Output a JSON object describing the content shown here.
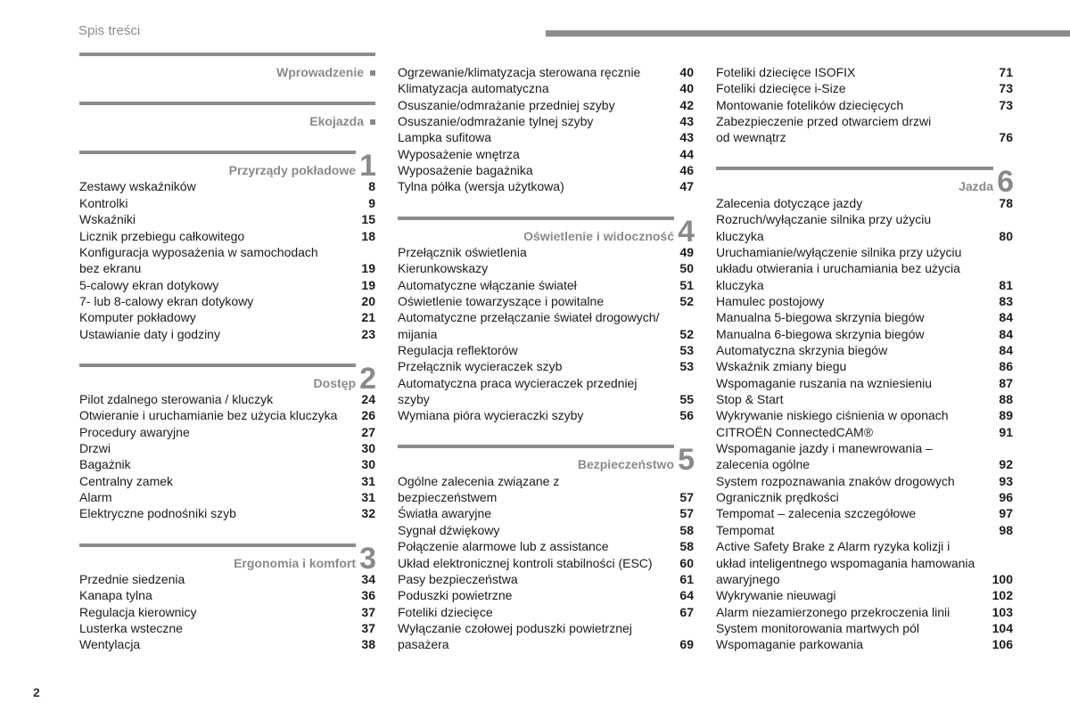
{
  "header": {
    "title": "Spis treści",
    "page_number": "2"
  },
  "columns": [
    {
      "items": [
        {
          "type": "header",
          "title": "Wprowadzenie",
          "marker": "■"
        },
        {
          "type": "header",
          "title": "Ekojazda",
          "marker": "■"
        },
        {
          "type": "header",
          "title": "Przyrządy pokładowe",
          "num": "1"
        },
        {
          "type": "entry",
          "lines": [
            "Zestawy wskaźników"
          ],
          "page": "8"
        },
        {
          "type": "entry",
          "lines": [
            "Kontrolki"
          ],
          "page": "9"
        },
        {
          "type": "entry",
          "lines": [
            "Wskaźniki"
          ],
          "page": "15"
        },
        {
          "type": "entry",
          "lines": [
            "Licznik przebiegu całkowitego"
          ],
          "page": "18"
        },
        {
          "type": "entry",
          "lines": [
            "Konfiguracja wyposażenia w samochodach",
            "bez ekranu"
          ],
          "page": "19"
        },
        {
          "type": "entry",
          "lines": [
            "5-calowy ekran dotykowy"
          ],
          "page": "19"
        },
        {
          "type": "entry",
          "lines": [
            "7- lub 8-calowy ekran dotykowy"
          ],
          "page": "20"
        },
        {
          "type": "entry",
          "lines": [
            "Komputer pokładowy"
          ],
          "page": "21"
        },
        {
          "type": "entry",
          "lines": [
            "Ustawianie daty i godziny"
          ],
          "page": "23"
        },
        {
          "type": "header",
          "title": "Dostęp",
          "num": "2"
        },
        {
          "type": "entry",
          "lines": [
            "Pilot zdalnego sterowania / kluczyk"
          ],
          "page": "24"
        },
        {
          "type": "entry",
          "lines": [
            "Otwieranie i uruchamianie bez użycia kluczyka"
          ],
          "page": "26"
        },
        {
          "type": "entry",
          "lines": [
            "Procedury awaryjne"
          ],
          "page": "27"
        },
        {
          "type": "entry",
          "lines": [
            "Drzwi"
          ],
          "page": "30"
        },
        {
          "type": "entry",
          "lines": [
            "Bagażnik"
          ],
          "page": "30"
        },
        {
          "type": "entry",
          "lines": [
            "Centralny zamek"
          ],
          "page": "31"
        },
        {
          "type": "entry",
          "lines": [
            "Alarm"
          ],
          "page": "31"
        },
        {
          "type": "entry",
          "lines": [
            "Elektryczne podnośniki szyb"
          ],
          "page": "32"
        },
        {
          "type": "header",
          "title": "Ergonomia i komfort",
          "num": "3"
        },
        {
          "type": "entry",
          "lines": [
            "Przednie siedzenia"
          ],
          "page": "34"
        },
        {
          "type": "entry",
          "lines": [
            "Kanapa tylna"
          ],
          "page": "36"
        },
        {
          "type": "entry",
          "lines": [
            "Regulacja kierownicy"
          ],
          "page": "37"
        },
        {
          "type": "entry",
          "lines": [
            "Lusterka wsteczne"
          ],
          "page": "37"
        },
        {
          "type": "entry",
          "lines": [
            "Wentylacja"
          ],
          "page": "38"
        }
      ]
    },
    {
      "items": [
        {
          "type": "entry",
          "lines": [
            "Ogrzewanie/klimatyzacja sterowana ręcznie"
          ],
          "page": "40"
        },
        {
          "type": "entry",
          "lines": [
            "Klimatyzacja automatyczna"
          ],
          "page": "40"
        },
        {
          "type": "entry",
          "lines": [
            "Osuszanie/odmrażanie przedniej szyby"
          ],
          "page": "42"
        },
        {
          "type": "entry",
          "lines": [
            "Osuszanie/odmrażanie tylnej szyby"
          ],
          "page": "43"
        },
        {
          "type": "entry",
          "lines": [
            "Lampka sufitowa"
          ],
          "page": "43"
        },
        {
          "type": "entry",
          "lines": [
            "Wyposażenie wnętrza"
          ],
          "page": "44"
        },
        {
          "type": "entry",
          "lines": [
            "Wyposażenie bagażnika"
          ],
          "page": "46"
        },
        {
          "type": "entry",
          "lines": [
            "Tylna półka (wersja użytkowa)"
          ],
          "page": "47"
        },
        {
          "type": "header",
          "title": "Oświetlenie i widoczność",
          "num": "4"
        },
        {
          "type": "entry",
          "lines": [
            "Przełącznik oświetlenia"
          ],
          "page": "49"
        },
        {
          "type": "entry",
          "lines": [
            "Kierunkowskazy"
          ],
          "page": "50"
        },
        {
          "type": "entry",
          "lines": [
            "Automatyczne włączanie świateł"
          ],
          "page": "51"
        },
        {
          "type": "entry",
          "lines": [
            "Oświetlenie towarzyszące i powitalne"
          ],
          "page": "52"
        },
        {
          "type": "entry",
          "lines": [
            "Automatyczne przełączanie świateł drogowych/",
            "mijania"
          ],
          "page": "52"
        },
        {
          "type": "entry",
          "lines": [
            "Regulacja reflektorów"
          ],
          "page": "53"
        },
        {
          "type": "entry",
          "lines": [
            "Przełącznik wycieraczek szyb"
          ],
          "page": "53"
        },
        {
          "type": "entry",
          "lines": [
            "Automatyczna praca wycieraczek przedniej",
            "szyby"
          ],
          "page": "55"
        },
        {
          "type": "entry",
          "lines": [
            "Wymiana pióra wycieraczki szyby"
          ],
          "page": "56"
        },
        {
          "type": "header",
          "title": "Bezpieczeństwo",
          "num": "5"
        },
        {
          "type": "entry",
          "lines": [
            "Ogólne zalecenia związane z",
            "bezpieczeństwem"
          ],
          "page": "57"
        },
        {
          "type": "entry",
          "lines": [
            "Światła awaryjne"
          ],
          "page": "57"
        },
        {
          "type": "entry",
          "lines": [
            "Sygnał dźwiękowy"
          ],
          "page": "58"
        },
        {
          "type": "entry",
          "lines": [
            "Połączenie alarmowe lub z assistance"
          ],
          "page": "58"
        },
        {
          "type": "entry",
          "lines": [
            "Układ elektronicznej kontroli stabilności (ESC)"
          ],
          "page": "60"
        },
        {
          "type": "entry",
          "lines": [
            "Pasy bezpieczeństwa"
          ],
          "page": "61"
        },
        {
          "type": "entry",
          "lines": [
            "Poduszki powietrzne"
          ],
          "page": "64"
        },
        {
          "type": "entry",
          "lines": [
            "Foteliki dziecięce"
          ],
          "page": "67"
        },
        {
          "type": "entry",
          "lines": [
            "Wyłączanie czołowej poduszki powietrznej",
            "pasażera"
          ],
          "page": "69"
        }
      ]
    },
    {
      "items": [
        {
          "type": "entry",
          "lines": [
            "Foteliki dziecięce ISOFIX"
          ],
          "page": "71"
        },
        {
          "type": "entry",
          "lines": [
            "Foteliki dziecięce i-Size"
          ],
          "page": "73"
        },
        {
          "type": "entry",
          "lines": [
            "Montowanie fotelików dziecięcych"
          ],
          "page": "73"
        },
        {
          "type": "entry",
          "lines": [
            "Zabezpieczenie przed otwarciem drzwi",
            "od wewnątrz"
          ],
          "page": "76"
        },
        {
          "type": "header",
          "title": "Jazda",
          "num": "6"
        },
        {
          "type": "entry",
          "lines": [
            "Zalecenia dotyczące jazdy"
          ],
          "page": "78"
        },
        {
          "type": "entry",
          "lines": [
            "Rozruch/wyłączanie silnika przy użyciu",
            "kluczyka"
          ],
          "page": "80"
        },
        {
          "type": "entry",
          "lines": [
            "Uruchamianie/wyłączenie silnika przy użyciu",
            "układu otwierania i uruchamiania bez użycia",
            "kluczyka"
          ],
          "page": "81"
        },
        {
          "type": "entry",
          "lines": [
            "Hamulec postojowy"
          ],
          "page": "83"
        },
        {
          "type": "entry",
          "lines": [
            "Manualna 5-biegowa skrzynia biegów"
          ],
          "page": "84"
        },
        {
          "type": "entry",
          "lines": [
            "Manualna 6-biegowa skrzynia biegów"
          ],
          "page": "84"
        },
        {
          "type": "entry",
          "lines": [
            "Automatyczna skrzynia biegów"
          ],
          "page": "84"
        },
        {
          "type": "entry",
          "lines": [
            "Wskaźnik zmiany biegu"
          ],
          "page": "86"
        },
        {
          "type": "entry",
          "lines": [
            "Wspomaganie ruszania na wzniesieniu"
          ],
          "page": "87"
        },
        {
          "type": "entry",
          "lines": [
            "Stop & Start"
          ],
          "page": "88"
        },
        {
          "type": "entry",
          "lines": [
            "Wykrywanie niskiego ciśnienia w oponach"
          ],
          "page": "89"
        },
        {
          "type": "entry",
          "lines": [
            "CITROËN ConnectedCAM®"
          ],
          "page": "91"
        },
        {
          "type": "entry",
          "lines": [
            "Wspomaganie jazdy i manewrowania –",
            "zalecenia ogólne"
          ],
          "page": "92"
        },
        {
          "type": "entry",
          "lines": [
            "System rozpoznawania znaków drogowych"
          ],
          "page": "93"
        },
        {
          "type": "entry",
          "lines": [
            "Ogranicznik prędkości"
          ],
          "page": "96"
        },
        {
          "type": "entry",
          "lines": [
            "Tempomat – zalecenia szczegółowe"
          ],
          "page": "97"
        },
        {
          "type": "entry",
          "lines": [
            "Tempomat"
          ],
          "page": "98"
        },
        {
          "type": "entry",
          "lines": [
            "Active Safety Brake z Alarm ryzyka kolizji i",
            "układ inteligentnego wspomagania hamowania",
            "awaryjnego"
          ],
          "page": "100"
        },
        {
          "type": "entry",
          "lines": [
            "Wykrywanie nieuwagi"
          ],
          "page": "102"
        },
        {
          "type": "entry",
          "lines": [
            "Alarm niezamierzonego przekroczenia linii"
          ],
          "page": "103"
        },
        {
          "type": "entry",
          "lines": [
            "System monitorowania martwych pól"
          ],
          "page": "104"
        },
        {
          "type": "entry",
          "lines": [
            "Wspomaganie parkowania"
          ],
          "page": "106"
        }
      ]
    }
  ]
}
